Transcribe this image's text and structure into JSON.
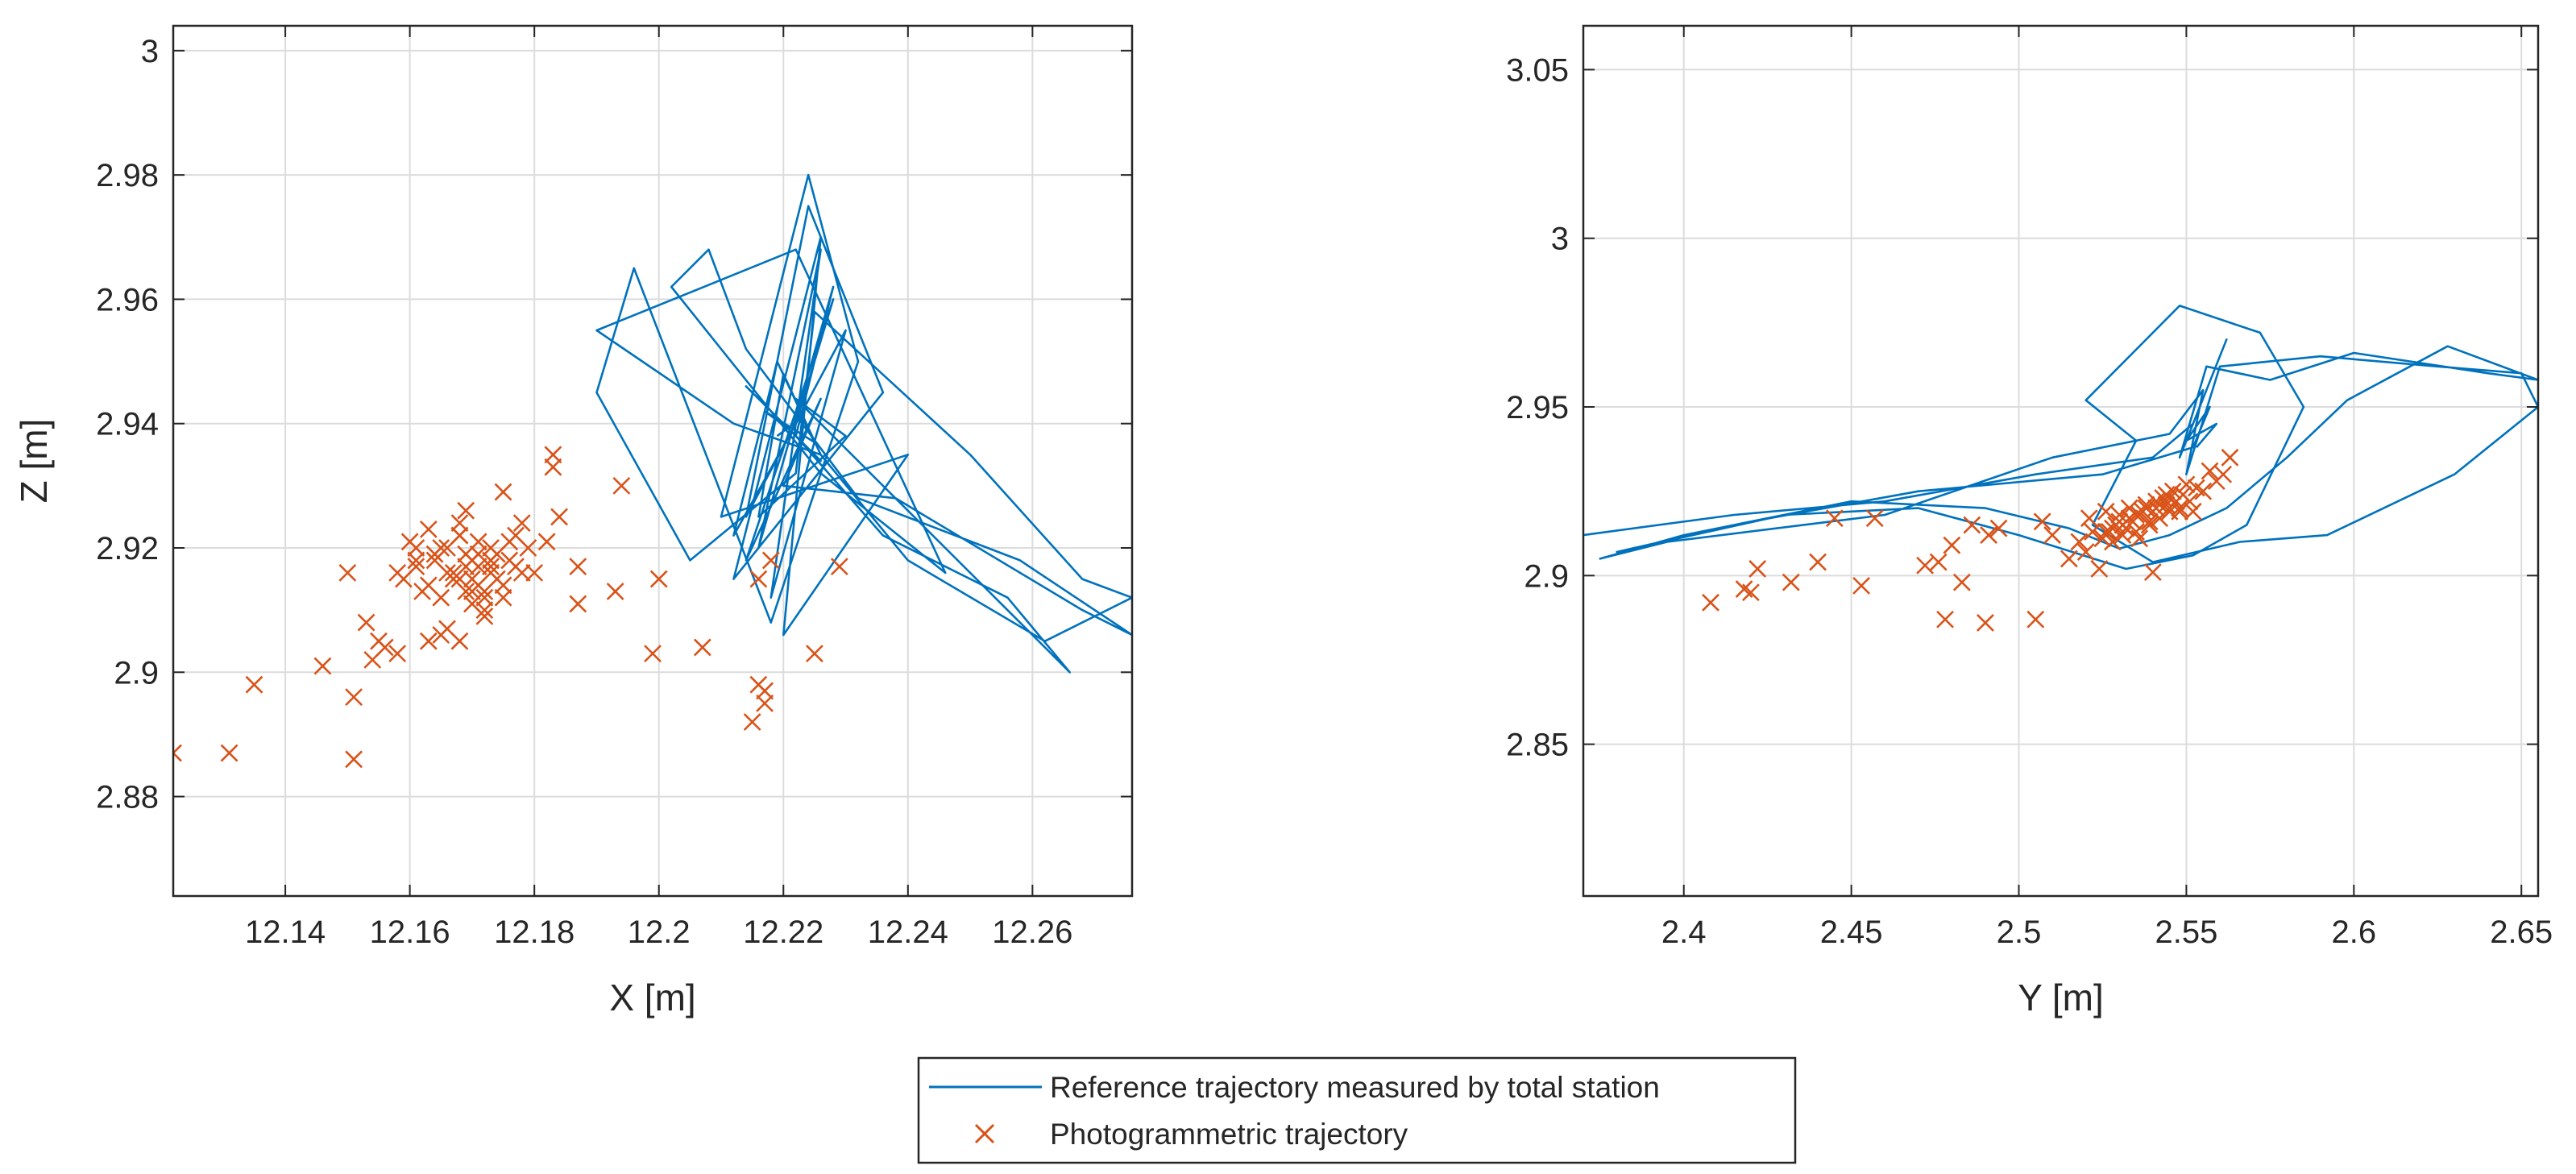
{
  "chart_data": [
    {
      "type": "line+scatter",
      "xlabel": "X [m]",
      "ylabel": "Z [m]",
      "xlim": [
        12.122,
        12.276
      ],
      "ylim": [
        2.864,
        3.004
      ],
      "grid": true,
      "xticks": [
        12.14,
        12.16,
        12.18,
        12.2,
        12.22,
        12.24,
        12.26
      ],
      "xtick_labels": [
        "12.14",
        "12.16",
        "12.18",
        "12.2",
        "12.22",
        "12.24",
        "12.26"
      ],
      "yticks": [
        2.88,
        2.9,
        2.92,
        2.94,
        2.96,
        2.98,
        3.0
      ],
      "ytick_labels": [
        "2.88",
        "2.9",
        "2.92",
        "2.94",
        "2.96",
        "2.98",
        "3"
      ],
      "series": [
        {
          "name": "Reference trajectory measured by total station",
          "style": "line",
          "color": "#0072BD",
          "x": [
            12.222,
            12.228,
            12.216,
            12.226,
            12.218,
            12.23,
            12.214,
            12.224,
            12.236,
            12.212,
            12.226,
            12.22,
            12.24,
            12.21,
            12.224,
            12.232,
            12.218,
            12.196,
            12.19,
            12.205,
            12.222,
            12.225,
            12.25,
            12.268,
            12.276,
            12.262,
            12.24,
            12.226,
            12.219,
            12.212,
            12.222,
            12.228,
            12.214,
            12.226,
            12.22,
            12.238,
            12.268,
            12.276,
            12.258,
            12.232,
            12.214,
            12.208,
            12.202,
            12.218,
            12.226,
            12.246,
            12.222,
            12.19,
            12.212,
            12.226,
            12.22,
            12.216,
            12.23,
            12.222,
            12.266,
            12.256,
            12.236,
            12.222,
            12.214,
            12.226,
            12.221,
            12.217,
            12.225,
            12.223,
            12.219
          ],
          "y": [
            2.938,
            2.962,
            2.92,
            2.968,
            2.912,
            2.955,
            2.925,
            2.975,
            2.945,
            2.915,
            2.97,
            2.906,
            2.935,
            2.925,
            2.98,
            2.95,
            2.908,
            2.965,
            2.945,
            2.918,
            2.932,
            2.958,
            2.935,
            2.915,
            2.912,
            2.905,
            2.918,
            2.935,
            2.95,
            2.922,
            2.94,
            2.96,
            2.918,
            2.944,
            2.93,
            2.928,
            2.91,
            2.906,
            2.918,
            2.928,
            2.952,
            2.968,
            2.962,
            2.942,
            2.932,
            2.916,
            2.968,
            2.955,
            2.94,
            2.935,
            2.948,
            2.925,
            2.938,
            2.944,
            2.9,
            2.912,
            2.922,
            2.938,
            2.946,
            2.934,
            2.939,
            2.942,
            2.937,
            2.941,
            2.938
          ]
        },
        {
          "name": "Photogrammetric trajectory",
          "style": "marker-x",
          "color": "#D95319",
          "x": [
            12.122,
            12.131,
            12.135,
            12.146,
            12.15,
            12.151,
            12.151,
            12.153,
            12.154,
            12.155,
            12.156,
            12.158,
            12.158,
            12.161,
            12.163,
            12.165,
            12.166,
            12.168,
            12.175,
            12.178,
            12.18,
            12.182,
            12.183,
            12.183,
            12.184,
            12.187,
            12.187,
            12.193,
            12.194,
            12.199,
            12.2,
            12.207,
            12.215,
            12.216,
            12.216,
            12.217,
            12.217,
            12.218,
            12.225,
            12.229,
            12.159,
            12.16,
            12.161,
            12.162,
            12.163,
            12.164,
            12.165,
            12.166,
            12.167,
            12.168,
            12.169,
            12.17,
            12.171,
            12.172,
            12.173,
            12.174,
            12.175,
            12.176,
            12.177,
            12.178,
            12.169,
            12.171,
            12.173,
            12.167,
            12.165,
            12.172,
            12.17,
            12.168,
            12.174,
            12.176,
            12.163,
            12.161,
            12.179,
            12.172,
            12.17,
            12.169,
            12.171,
            12.166,
            12.175,
            12.168,
            12.173,
            12.17,
            12.172,
            12.164,
            12.177,
            12.171,
            12.169,
            12.173,
            12.17,
            12.168
          ],
          "y": [
            2.887,
            2.887,
            2.898,
            2.901,
            2.916,
            2.886,
            2.896,
            2.908,
            2.902,
            2.905,
            2.904,
            2.903,
            2.916,
            2.92,
            2.905,
            2.906,
            2.907,
            2.905,
            2.929,
            2.924,
            2.916,
            2.921,
            2.935,
            2.933,
            2.925,
            2.911,
            2.917,
            2.913,
            2.93,
            2.903,
            2.915,
            2.904,
            2.892,
            2.898,
            2.915,
            2.895,
            2.897,
            2.918,
            2.903,
            2.917,
            2.915,
            2.921,
            2.917,
            2.913,
            2.923,
            2.918,
            2.912,
            2.92,
            2.915,
            2.922,
            2.926,
            2.913,
            2.917,
            2.91,
            2.92,
            2.915,
            2.912,
            2.918,
            2.922,
            2.916,
            2.919,
            2.914,
            2.917,
            2.916,
            2.92,
            2.913,
            2.918,
            2.915,
            2.919,
            2.921,
            2.914,
            2.918,
            2.92,
            2.909,
            2.911,
            2.917,
            2.919,
            2.916,
            2.914,
            2.924,
            2.918,
            2.915,
            2.912,
            2.919,
            2.917,
            2.921,
            2.913,
            2.916,
            2.918,
            2.922
          ]
        }
      ]
    },
    {
      "type": "line+scatter",
      "xlabel": "Y [m]",
      "ylabel": "",
      "xlim": [
        2.37,
        2.655
      ],
      "ylim": [
        2.805,
        3.063
      ],
      "grid": true,
      "xticks": [
        2.4,
        2.45,
        2.5,
        2.55,
        2.6,
        2.65
      ],
      "xtick_labels": [
        "2.4",
        "2.45",
        "2.5",
        "2.55",
        "2.6",
        "2.65"
      ],
      "yticks": [
        2.85,
        2.9,
        2.95,
        3.0,
        3.05
      ],
      "ytick_labels": [
        "2.85",
        "2.9",
        "2.95",
        "3",
        "3.05"
      ],
      "series": [
        {
          "name": "Reference trajectory measured by total station",
          "style": "line",
          "color": "#0072BD",
          "x": [
            2.37,
            2.415,
            2.46,
            2.505,
            2.54,
            2.552,
            2.562,
            2.548,
            2.556,
            2.575,
            2.6,
            2.64,
            2.655,
            2.628,
            2.598,
            2.58,
            2.562,
            2.545,
            2.53,
            2.515,
            2.49,
            2.45,
            2.4,
            2.375,
            2.395,
            2.46,
            2.51,
            2.545,
            2.555,
            2.55,
            2.56,
            2.59,
            2.625,
            2.65,
            2.655,
            2.63,
            2.592,
            2.566,
            2.54,
            2.522,
            2.535,
            2.52,
            2.548,
            2.572,
            2.585,
            2.568,
            2.552,
            2.532,
            2.5,
            2.47,
            2.43,
            2.38,
            2.42,
            2.47,
            2.525,
            2.552,
            2.557,
            2.55,
            2.559,
            2.553
          ],
          "y": [
            2.912,
            2.918,
            2.922,
            2.93,
            2.935,
            2.945,
            2.97,
            2.935,
            2.962,
            2.958,
            2.966,
            2.96,
            2.958,
            2.968,
            2.952,
            2.935,
            2.92,
            2.912,
            2.908,
            2.914,
            2.92,
            2.922,
            2.912,
            2.905,
            2.91,
            2.918,
            2.935,
            2.942,
            2.955,
            2.93,
            2.962,
            2.965,
            2.962,
            2.96,
            2.95,
            2.93,
            2.912,
            2.91,
            2.904,
            2.915,
            2.94,
            2.952,
            2.98,
            2.972,
            2.95,
            2.915,
            2.906,
            2.902,
            2.912,
            2.92,
            2.918,
            2.907,
            2.916,
            2.925,
            2.93,
            2.938,
            2.95,
            2.94,
            2.945,
            2.938
          ]
        },
        {
          "name": "Photogrammetric trajectory",
          "style": "marker-x",
          "color": "#D95319",
          "x": [
            2.408,
            2.418,
            2.42,
            2.422,
            2.432,
            2.44,
            2.445,
            2.453,
            2.457,
            2.472,
            2.476,
            2.478,
            2.48,
            2.483,
            2.486,
            2.49,
            2.491,
            2.494,
            2.505,
            2.507,
            2.51,
            2.515,
            2.518,
            2.52,
            2.521,
            2.522,
            2.524,
            2.525,
            2.526,
            2.527,
            2.528,
            2.529,
            2.53,
            2.531,
            2.532,
            2.533,
            2.534,
            2.535,
            2.536,
            2.537,
            2.538,
            2.539,
            2.54,
            2.541,
            2.542,
            2.543,
            2.544,
            2.545,
            2.546,
            2.547,
            2.548,
            2.549,
            2.55,
            2.551,
            2.552,
            2.553,
            2.555,
            2.557,
            2.559,
            2.561,
            2.563,
            2.53,
            2.535,
            2.528,
            2.538,
            2.542,
            2.533,
            2.545,
            2.526,
            2.548,
            2.539,
            2.531,
            2.544,
            2.536,
            2.541
          ],
          "y": [
            2.892,
            2.896,
            2.895,
            2.902,
            2.898,
            2.904,
            2.917,
            2.897,
            2.917,
            2.903,
            2.904,
            2.887,
            2.909,
            2.898,
            2.915,
            2.886,
            2.912,
            2.914,
            2.887,
            2.916,
            2.912,
            2.905,
            2.91,
            2.907,
            2.917,
            2.913,
            2.902,
            2.911,
            2.919,
            2.913,
            2.91,
            2.915,
            2.918,
            2.912,
            2.914,
            2.92,
            2.916,
            2.913,
            2.911,
            2.919,
            2.921,
            2.915,
            2.901,
            2.92,
            2.917,
            2.923,
            2.921,
            2.919,
            2.925,
            2.922,
            2.92,
            2.924,
            2.927,
            2.922,
            2.919,
            2.926,
            2.925,
            2.931,
            2.928,
            2.93,
            2.935,
            2.916,
            2.918,
            2.914,
            2.92,
            2.921,
            2.917,
            2.923,
            2.913,
            2.919,
            2.916,
            2.915,
            2.924,
            2.918,
            2.922
          ]
        }
      ]
    }
  ],
  "legend": {
    "entries": [
      {
        "label": "Reference trajectory measured by total station",
        "style": "line",
        "color": "#0072BD"
      },
      {
        "label": "Photogrammetric trajectory",
        "style": "marker-x",
        "color": "#D95319"
      }
    ]
  }
}
